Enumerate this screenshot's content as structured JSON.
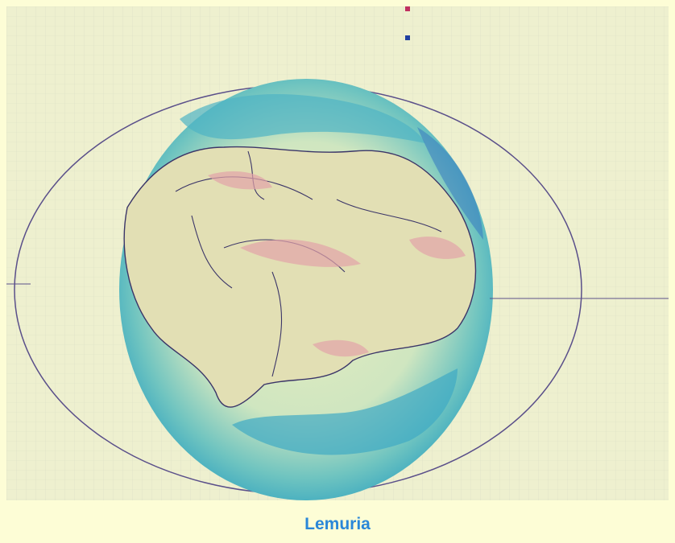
{
  "caption": "Lemuria"
}
